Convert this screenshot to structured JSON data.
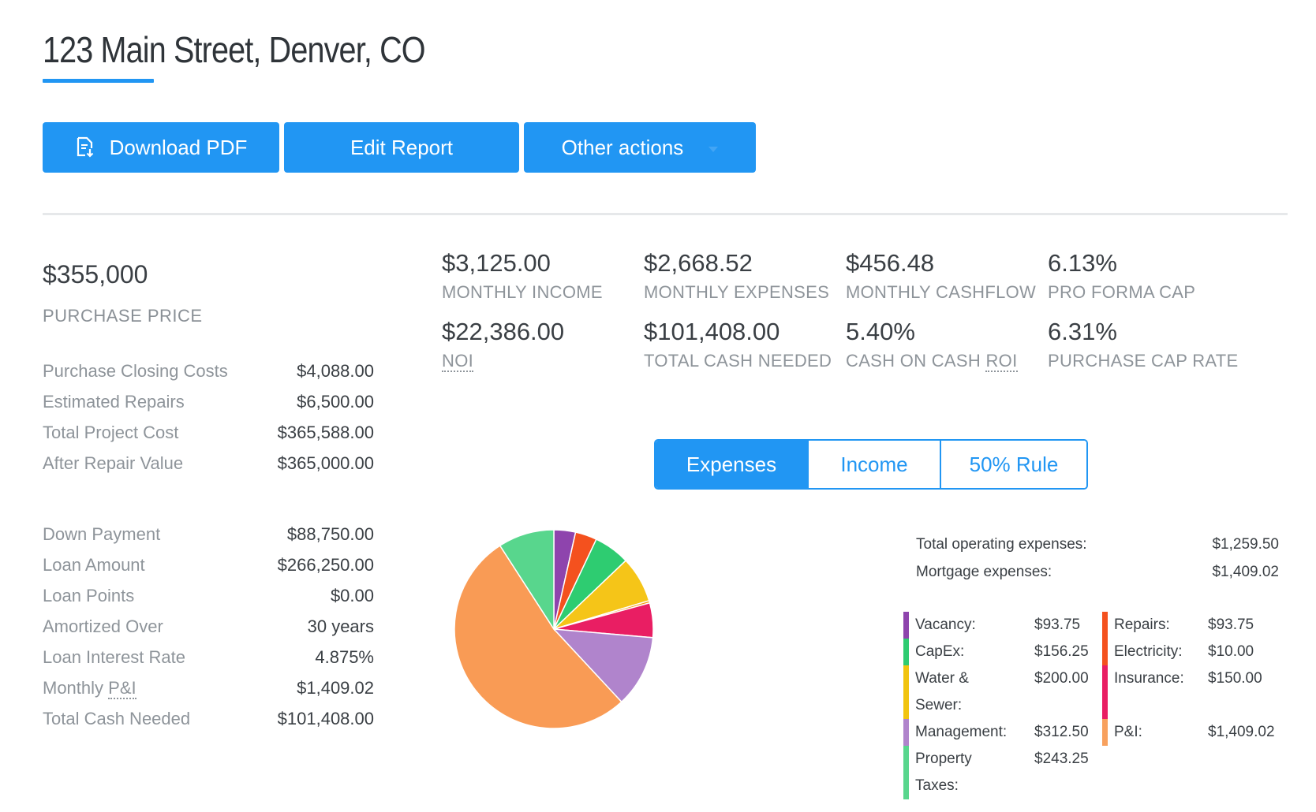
{
  "header": {
    "title": "123 Main Street, Denver, CO",
    "accent": "#2196f3"
  },
  "actions": {
    "download_pdf": "Download PDF",
    "edit_report": "Edit Report",
    "other_actions": "Other actions"
  },
  "purchase": {
    "price": "$355,000",
    "price_label": "PURCHASE PRICE",
    "costs": [
      {
        "label": "Purchase Closing Costs",
        "value": "$4,088.00"
      },
      {
        "label": "Estimated Repairs",
        "value": "$6,500.00"
      },
      {
        "label": "Total Project Cost",
        "value": "$365,588.00"
      },
      {
        "label": "After Repair Value",
        "value": "$365,000.00"
      }
    ],
    "loan": [
      {
        "label": "Down Payment",
        "value": "$88,750.00"
      },
      {
        "label": "Loan Amount",
        "value": "$266,250.00"
      },
      {
        "label": "Loan Points",
        "value": "$0.00"
      },
      {
        "label": "Amortized Over",
        "value": "30 years"
      },
      {
        "label": "Loan Interest Rate",
        "value": "4.875%"
      },
      {
        "label_prefix": "Monthly ",
        "label_abbr": "P&I",
        "value": "$1,409.02"
      },
      {
        "label": "Total Cash Needed",
        "value": "$101,408.00"
      }
    ]
  },
  "stats": {
    "monthly_income": {
      "value": "$3,125.00",
      "label": "MONTHLY INCOME"
    },
    "monthly_expenses": {
      "value": "$2,668.52",
      "label": "MONTHLY EXPENSES"
    },
    "monthly_cashflow": {
      "value": "$456.48",
      "label": "MONTHLY CASHFLOW"
    },
    "pro_forma_cap": {
      "value": "6.13%",
      "label": "PRO FORMA CAP"
    },
    "noi": {
      "value": "$22,386.00",
      "label": "NOI"
    },
    "total_cash_needed": {
      "value": "$101,408.00",
      "label": "TOTAL CASH NEEDED"
    },
    "cash_on_cash": {
      "value": "5.40%",
      "label_prefix": "CASH ON CASH ",
      "label_abbr": "ROI"
    },
    "purchase_cap_rate": {
      "value": "6.31%",
      "label": "PURCHASE CAP RATE"
    }
  },
  "tabs": {
    "expenses": "Expenses",
    "income": "Income",
    "rule": "50% Rule",
    "active": "expenses"
  },
  "summary": {
    "operating_label": "Total operating expenses:",
    "operating_value": "$1,259.50",
    "mortgage_label": "Mortgage expenses:",
    "mortgage_value": "$1,409.02"
  },
  "legend_left": [
    {
      "label": "Vacancy:",
      "value": "$93.75",
      "color": "#8e44ad"
    },
    {
      "label": "CapEx:",
      "value": "$156.25",
      "color": "#2ecc71"
    },
    {
      "label": "Water & Sewer:",
      "value": "$200.00",
      "color": "#f1c40f"
    },
    {
      "label": "Management:",
      "value": "$312.50",
      "color": "#b084cc"
    },
    {
      "label": "Property Taxes:",
      "value": "$243.25",
      "color": "#58d68d"
    }
  ],
  "legend_right": [
    {
      "label": "Repairs:",
      "value": "$93.75",
      "color": "#f4511e"
    },
    {
      "label": "Electricity:",
      "value": "$10.00",
      "color": "#f4511e"
    },
    {
      "label": "Insurance:",
      "value": "$150.00",
      "color": "#e91e63"
    },
    {
      "label": "P&I:",
      "value": "$1,409.02",
      "color": "#f8a15e"
    }
  ],
  "chart_data": {
    "type": "pie",
    "title": "Expenses",
    "slices": [
      {
        "name": "Vacancy",
        "value": 93.75,
        "color": "#8e44ad"
      },
      {
        "name": "Repairs",
        "value": 93.75,
        "color": "#f4511e"
      },
      {
        "name": "CapEx",
        "value": 156.25,
        "color": "#2ecc71"
      },
      {
        "name": "Water & Sewer",
        "value": 200.0,
        "color": "#f5c518"
      },
      {
        "name": "Electricity",
        "value": 10.0,
        "color": "#f39c12"
      },
      {
        "name": "Insurance",
        "value": 150.0,
        "color": "#e91e63"
      },
      {
        "name": "Management",
        "value": 312.5,
        "color": "#b084cc"
      },
      {
        "name": "P&I",
        "value": 1409.02,
        "color": "#f99b55"
      },
      {
        "name": "Property Taxes",
        "value": 243.25,
        "color": "#58d68d"
      }
    ]
  }
}
